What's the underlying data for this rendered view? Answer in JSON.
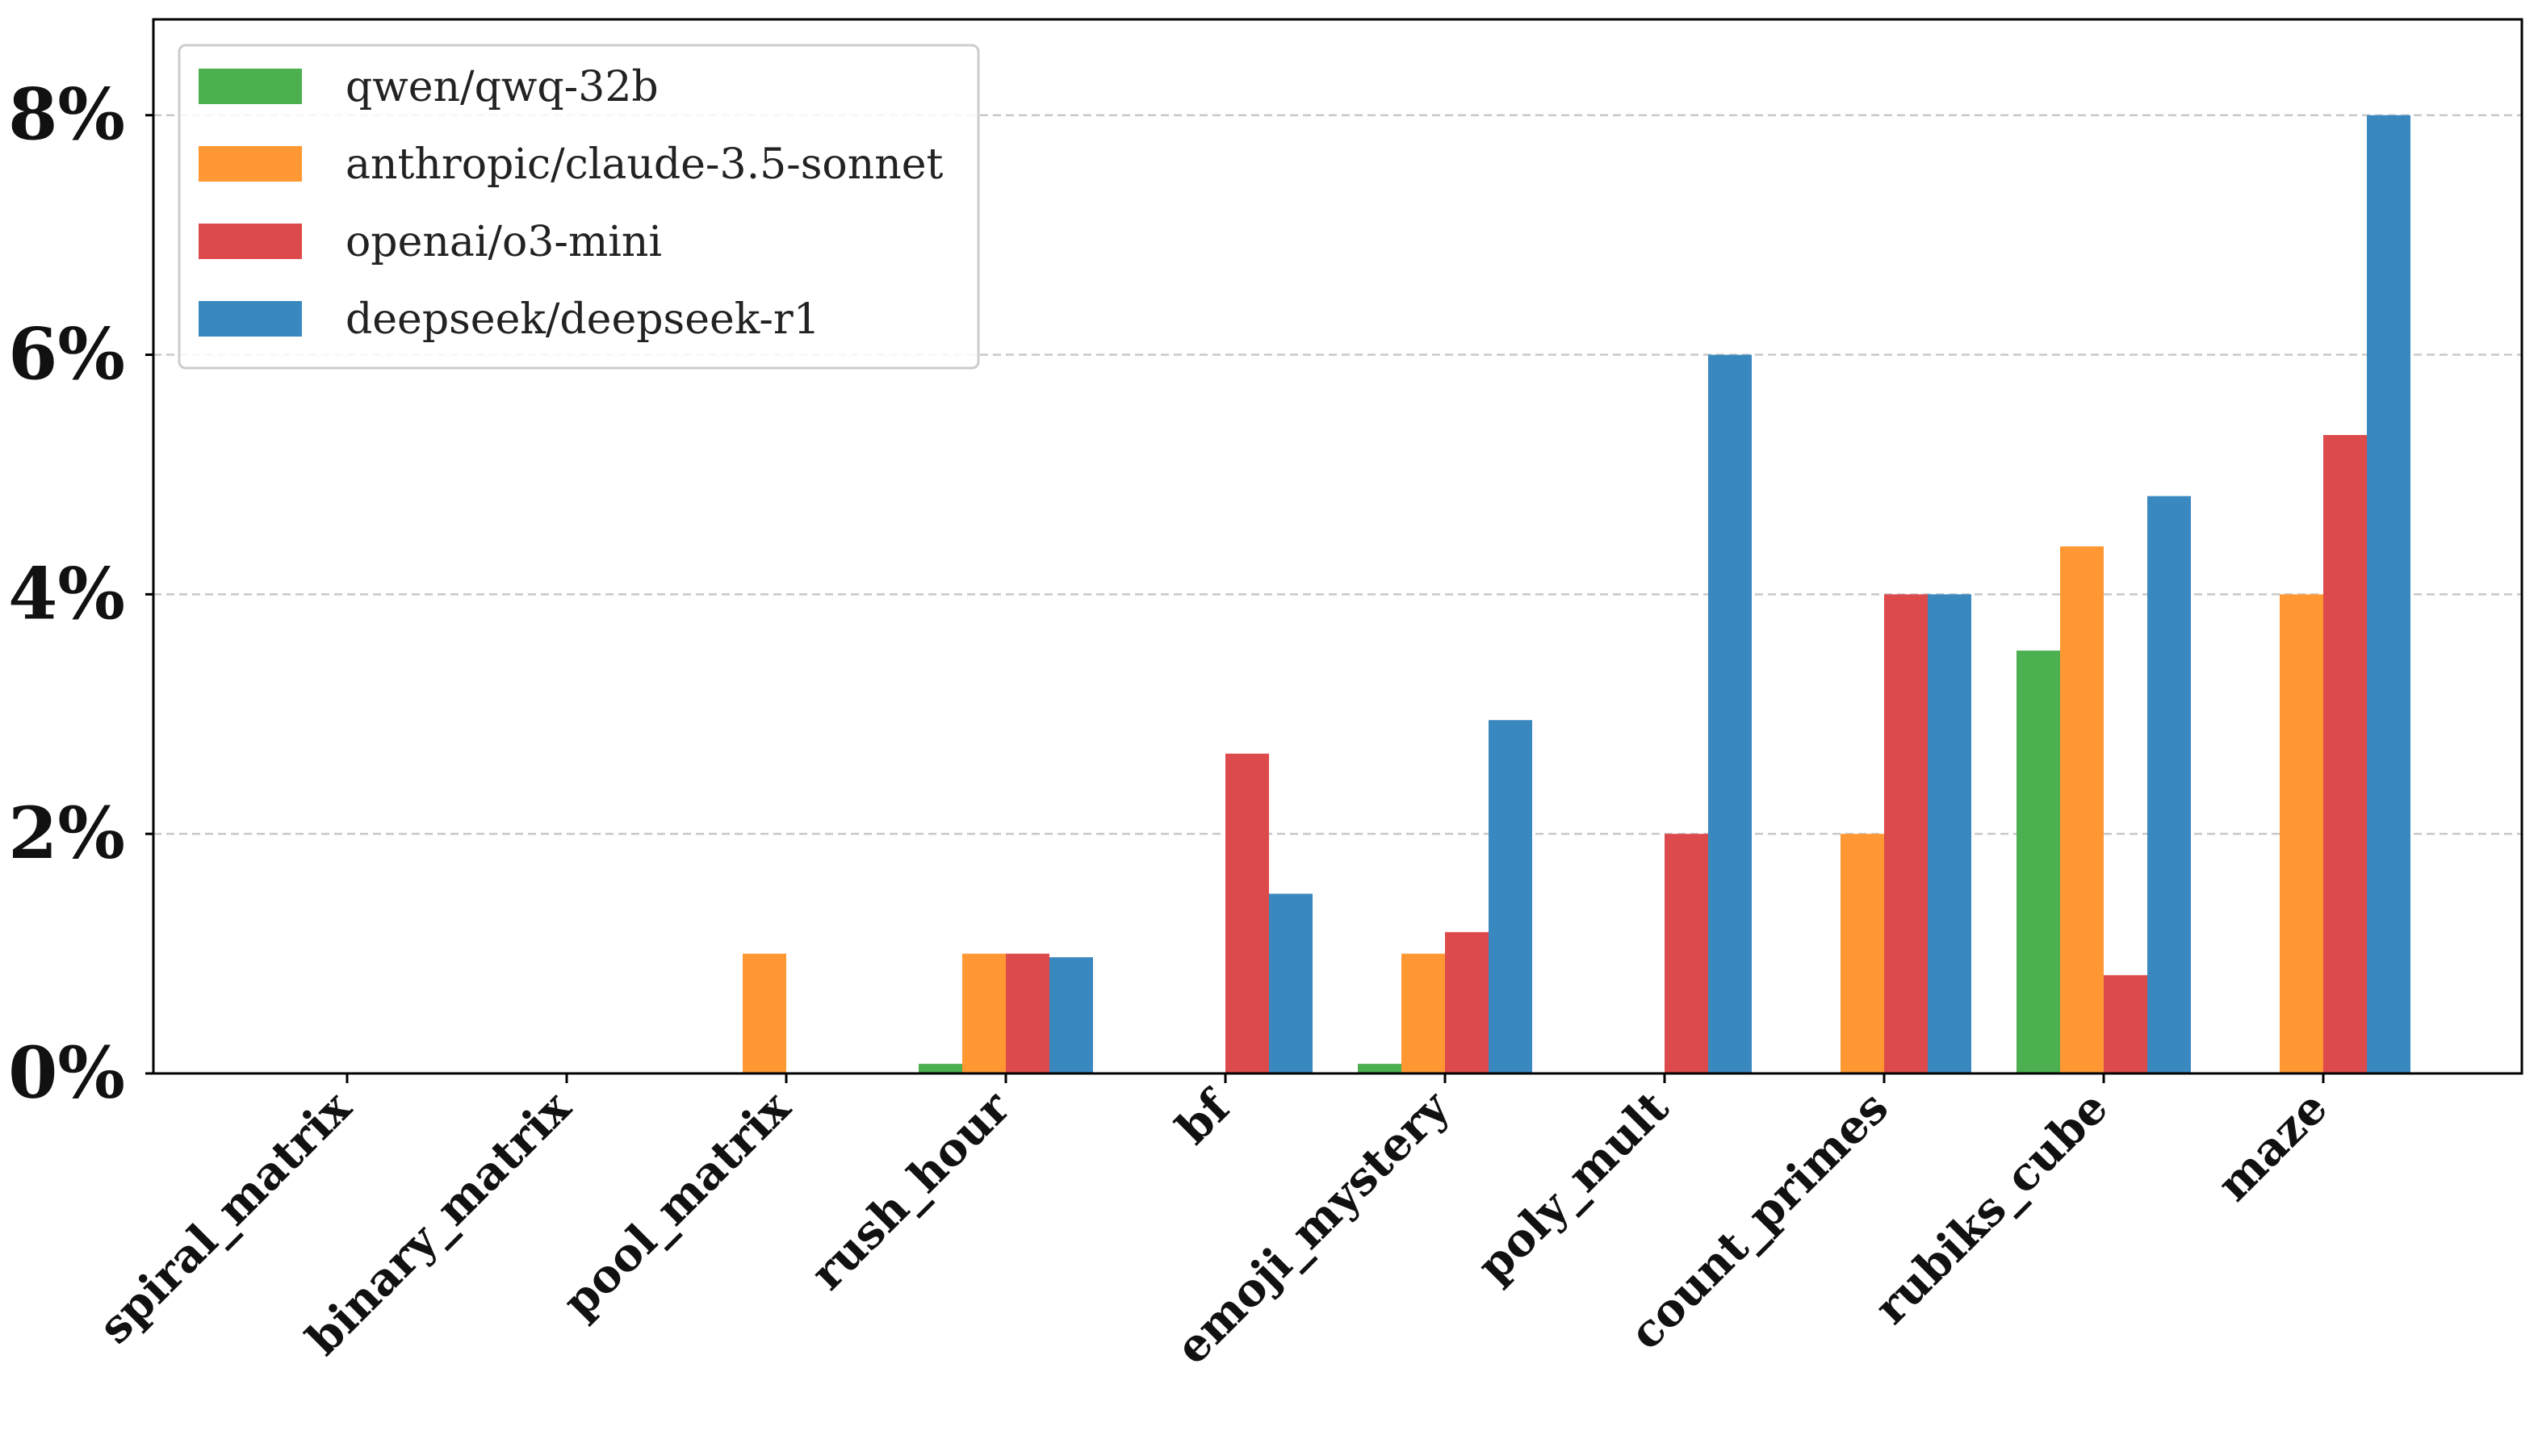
{
  "chart_data": {
    "type": "bar",
    "title": "",
    "xlabel": "",
    "ylabel": "",
    "categories": [
      "spiral_matrix",
      "binary_matrix",
      "pool_matrix",
      "rush_hour",
      "bf",
      "emoji_mystery",
      "poly_mult",
      "count_primes",
      "rubiks_cube",
      "maze"
    ],
    "series": [
      {
        "name": "qwen/qwq-32b",
        "color": "#4caf50",
        "values": [
          0,
          0,
          0,
          0.08,
          0,
          0.08,
          0,
          0,
          3.53,
          0
        ]
      },
      {
        "name": "anthropic/claude-3.5-sonnet",
        "color": "#ff9833",
        "values": [
          0,
          0,
          1.0,
          1.0,
          0,
          1.0,
          0,
          2.0,
          4.4,
          4.0
        ]
      },
      {
        "name": "openai/o3-mini",
        "color": "#dd4a4c",
        "values": [
          0,
          0,
          0,
          1.0,
          2.67,
          1.18,
          2.0,
          4.0,
          0.82,
          5.33
        ]
      },
      {
        "name": "deepseek/deepseek-r1",
        "color": "#3a88c0",
        "values": [
          0,
          0,
          0,
          0.97,
          1.5,
          2.95,
          6.0,
          4.0,
          4.82,
          8.0
        ]
      }
    ],
    "ylim": [
      0,
      8.8
    ],
    "yticks": [
      0,
      2,
      4,
      6,
      8
    ],
    "ytick_labels": [
      "0%",
      "2%",
      "4%",
      "6%",
      "8%"
    ],
    "grid": "horizontal dashed",
    "legend_position": "top-left"
  }
}
